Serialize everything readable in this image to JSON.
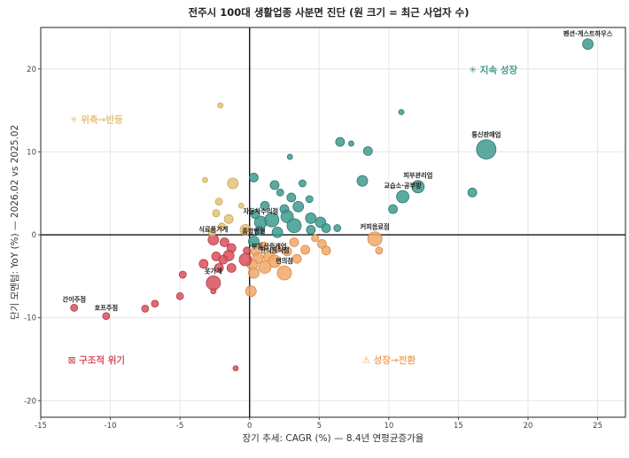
{
  "chart_data": {
    "type": "scatter",
    "title": "전주시 100대 생활업종 사분면 진단 (원 크기 = 최근 사업자 수)",
    "xlabel": "장기 추세: CAGR (%) — 8.4년 연평균증가율",
    "ylabel": "단기 모멘텀: YoY (%) — 2026.02 vs 2025.02",
    "xlim": [
      -15,
      27
    ],
    "ylim": [
      -22,
      25
    ],
    "xticks": [
      -15,
      -10,
      -5,
      0,
      5,
      10,
      15,
      20,
      25
    ],
    "yticks": [
      -20,
      -10,
      0,
      10,
      20
    ],
    "grid": true,
    "colors": {
      "teal": "#3f9a8e",
      "orange": "#f0a868",
      "red": "#d8505c",
      "yellow": "#e6c27a"
    },
    "quadrants": [
      {
        "key": "teal",
        "label": "지속 성장",
        "icon": "✳",
        "x": 17.5,
        "y": 19.5
      },
      {
        "key": "yellow",
        "label": "위축→반등",
        "icon": "✳",
        "x": -11,
        "y": 13.5
      },
      {
        "key": "red",
        "label": "구조적 위기",
        "icon": "⊠",
        "x": -11,
        "y": -15.5
      },
      {
        "key": "orange",
        "label": "성장→전환",
        "icon": "⚠",
        "x": 10,
        "y": -15.5
      }
    ],
    "points": [
      {
        "x": 24.3,
        "y": 23.0,
        "s": 6,
        "c": "teal",
        "label": "펜션·게스트하우스"
      },
      {
        "x": 17.0,
        "y": 10.3,
        "s": 11,
        "c": "teal",
        "label": "통신판매업"
      },
      {
        "x": 12.1,
        "y": 5.8,
        "s": 7,
        "c": "teal",
        "label": "피부관리업"
      },
      {
        "x": 11.0,
        "y": 4.6,
        "s": 7,
        "c": "teal",
        "label": "교습소·공부방"
      },
      {
        "x": 9.0,
        "y": -0.5,
        "s": 8,
        "c": "orange",
        "label": "커피음료점"
      },
      {
        "x": 0.8,
        "y": 1.5,
        "s": 7,
        "c": "teal",
        "label": "자동차수리점"
      },
      {
        "x": 0.3,
        "y": -0.8,
        "s": 6,
        "c": "teal",
        "label": "종합병원"
      },
      {
        "x": -2.6,
        "y": -0.6,
        "s": 6,
        "c": "red",
        "label": "식료품가게"
      },
      {
        "x": 1.4,
        "y": -2.6,
        "s": 6,
        "c": "orange",
        "label": "부동산중개업"
      },
      {
        "x": 1.8,
        "y": -3.2,
        "s": 7,
        "c": "orange",
        "label": "한식음식점"
      },
      {
        "x": 2.5,
        "y": -4.6,
        "s": 8,
        "c": "orange",
        "label": "편의점"
      },
      {
        "x": -2.6,
        "y": -5.8,
        "s": 8,
        "c": "red",
        "label": "옷가게"
      },
      {
        "x": -12.6,
        "y": -8.8,
        "s": 4,
        "c": "red",
        "label": "간이주점"
      },
      {
        "x": -10.3,
        "y": -9.8,
        "s": 4,
        "c": "red",
        "label": "호프주점"
      },
      {
        "x": 10.9,
        "y": 14.8,
        "s": 3,
        "c": "teal"
      },
      {
        "x": 6.5,
        "y": 11.2,
        "s": 5,
        "c": "teal"
      },
      {
        "x": 7.3,
        "y": 11.0,
        "s": 3,
        "c": "teal"
      },
      {
        "x": 8.5,
        "y": 10.1,
        "s": 5,
        "c": "teal"
      },
      {
        "x": 2.9,
        "y": 9.4,
        "s": 3,
        "c": "teal"
      },
      {
        "x": 8.1,
        "y": 6.5,
        "s": 6,
        "c": "teal"
      },
      {
        "x": 16.0,
        "y": 5.1,
        "s": 5,
        "c": "teal"
      },
      {
        "x": 10.3,
        "y": 3.1,
        "s": 5,
        "c": "teal"
      },
      {
        "x": 0.3,
        "y": 6.9,
        "s": 5,
        "c": "teal"
      },
      {
        "x": 1.8,
        "y": 6.0,
        "s": 5,
        "c": "teal"
      },
      {
        "x": 3.8,
        "y": 6.2,
        "s": 4,
        "c": "teal"
      },
      {
        "x": 2.2,
        "y": 5.1,
        "s": 4,
        "c": "teal"
      },
      {
        "x": 3.0,
        "y": 4.5,
        "s": 5,
        "c": "teal"
      },
      {
        "x": 1.1,
        "y": 3.5,
        "s": 5,
        "c": "teal"
      },
      {
        "x": 2.5,
        "y": 3.1,
        "s": 5,
        "c": "teal"
      },
      {
        "x": 3.5,
        "y": 3.4,
        "s": 6,
        "c": "teal"
      },
      {
        "x": 4.3,
        "y": 4.3,
        "s": 4,
        "c": "teal"
      },
      {
        "x": 0.4,
        "y": 2.5,
        "s": 5,
        "c": "teal"
      },
      {
        "x": 1.6,
        "y": 1.8,
        "s": 8,
        "c": "teal"
      },
      {
        "x": 2.7,
        "y": 2.2,
        "s": 7,
        "c": "teal"
      },
      {
        "x": 3.2,
        "y": 1.1,
        "s": 8,
        "c": "teal"
      },
      {
        "x": 4.4,
        "y": 2.0,
        "s": 6,
        "c": "teal"
      },
      {
        "x": 5.1,
        "y": 1.5,
        "s": 6,
        "c": "teal"
      },
      {
        "x": 5.5,
        "y": 0.8,
        "s": 5,
        "c": "teal"
      },
      {
        "x": 6.3,
        "y": 0.8,
        "s": 4,
        "c": "teal"
      },
      {
        "x": 0.7,
        "y": 0.5,
        "s": 5,
        "c": "teal"
      },
      {
        "x": 2.0,
        "y": 0.3,
        "s": 6,
        "c": "teal"
      },
      {
        "x": 4.4,
        "y": 0.6,
        "s": 5,
        "c": "teal"
      },
      {
        "x": 4.7,
        "y": -0.4,
        "s": 4,
        "c": "orange"
      },
      {
        "x": 3.2,
        "y": -0.9,
        "s": 5,
        "c": "orange"
      },
      {
        "x": 5.2,
        "y": -1.1,
        "s": 5,
        "c": "orange"
      },
      {
        "x": 5.5,
        "y": -1.9,
        "s": 5,
        "c": "orange"
      },
      {
        "x": 4.0,
        "y": -1.8,
        "s": 5,
        "c": "orange"
      },
      {
        "x": 2.7,
        "y": -2.0,
        "s": 5,
        "c": "orange"
      },
      {
        "x": 2.0,
        "y": -1.7,
        "s": 4,
        "c": "orange"
      },
      {
        "x": 1.0,
        "y": -1.4,
        "s": 5,
        "c": "orange"
      },
      {
        "x": 0.4,
        "y": -2.0,
        "s": 5,
        "c": "orange"
      },
      {
        "x": 3.4,
        "y": -2.9,
        "s": 5,
        "c": "orange"
      },
      {
        "x": 9.3,
        "y": -1.9,
        "s": 4,
        "c": "orange"
      },
      {
        "x": 0.6,
        "y": -2.8,
        "s": 6,
        "c": "orange"
      },
      {
        "x": 0.2,
        "y": -3.6,
        "s": 6,
        "c": "orange"
      },
      {
        "x": 1.1,
        "y": -3.9,
        "s": 7,
        "c": "orange"
      },
      {
        "x": 0.3,
        "y": -4.6,
        "s": 6,
        "c": "orange"
      },
      {
        "x": 0.1,
        "y": -6.8,
        "s": 6,
        "c": "orange"
      },
      {
        "x": -2.1,
        "y": 15.6,
        "s": 3,
        "c": "yellow"
      },
      {
        "x": -3.2,
        "y": 6.6,
        "s": 3,
        "c": "yellow"
      },
      {
        "x": -1.2,
        "y": 6.2,
        "s": 6,
        "c": "yellow"
      },
      {
        "x": -2.2,
        "y": 4.0,
        "s": 4,
        "c": "yellow"
      },
      {
        "x": -2.4,
        "y": 2.6,
        "s": 4,
        "c": "yellow"
      },
      {
        "x": -1.5,
        "y": 1.9,
        "s": 5,
        "c": "yellow"
      },
      {
        "x": -2.0,
        "y": 1.0,
        "s": 4,
        "c": "yellow"
      },
      {
        "x": -2.7,
        "y": 0.3,
        "s": 4,
        "c": "yellow"
      },
      {
        "x": -0.3,
        "y": 0.6,
        "s": 6,
        "c": "yellow"
      },
      {
        "x": -0.6,
        "y": 3.5,
        "s": 3,
        "c": "yellow"
      },
      {
        "x": -1.8,
        "y": -0.9,
        "s": 5,
        "c": "red"
      },
      {
        "x": -1.3,
        "y": -1.6,
        "s": 5,
        "c": "red"
      },
      {
        "x": -0.2,
        "y": -1.9,
        "s": 4,
        "c": "red"
      },
      {
        "x": -1.5,
        "y": -2.5,
        "s": 6,
        "c": "red"
      },
      {
        "x": -2.4,
        "y": -2.6,
        "s": 5,
        "c": "red"
      },
      {
        "x": -1.9,
        "y": -3.0,
        "s": 5,
        "c": "red"
      },
      {
        "x": -0.3,
        "y": -3.0,
        "s": 7,
        "c": "red"
      },
      {
        "x": -3.3,
        "y": -3.5,
        "s": 5,
        "c": "red"
      },
      {
        "x": -2.2,
        "y": -4.0,
        "s": 5,
        "c": "red"
      },
      {
        "x": -1.3,
        "y": -4.0,
        "s": 5,
        "c": "red"
      },
      {
        "x": -4.8,
        "y": -4.8,
        "s": 4,
        "c": "red"
      },
      {
        "x": -2.6,
        "y": -6.8,
        "s": 3,
        "c": "red"
      },
      {
        "x": -5.0,
        "y": -7.4,
        "s": 4,
        "c": "red"
      },
      {
        "x": -6.8,
        "y": -8.3,
        "s": 4,
        "c": "red"
      },
      {
        "x": -7.5,
        "y": -8.9,
        "s": 4,
        "c": "red"
      },
      {
        "x": -1.0,
        "y": -16.1,
        "s": 3,
        "c": "red"
      }
    ]
  }
}
